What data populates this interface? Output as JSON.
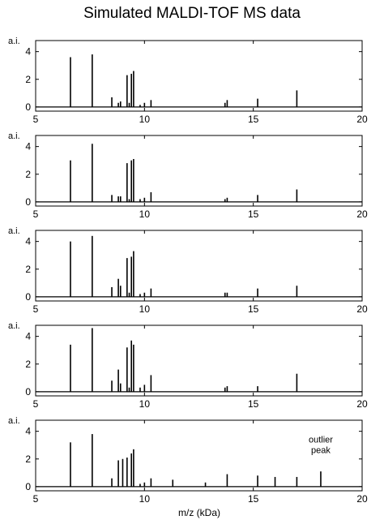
{
  "figure": {
    "title": "Simulated MALDI-TOF MS data",
    "xlabel": "m/z (kDa)",
    "ylabel": "a.i."
  },
  "chart_data": [
    {
      "type": "line",
      "xlim": [
        5,
        20
      ],
      "ylim": [
        -0.3,
        4.8
      ],
      "xticks": [
        5,
        10,
        15,
        20
      ],
      "yticks": [
        0,
        2,
        4
      ],
      "ylabel": "a.i.",
      "grid": false,
      "peaks": [
        {
          "x": 6.6,
          "y": 3.6
        },
        {
          "x": 7.6,
          "y": 3.8
        },
        {
          "x": 8.5,
          "y": 0.7
        },
        {
          "x": 8.8,
          "y": 0.3
        },
        {
          "x": 8.9,
          "y": 0.4
        },
        {
          "x": 9.2,
          "y": 2.3
        },
        {
          "x": 9.3,
          "y": 0.3
        },
        {
          "x": 9.4,
          "y": 2.4
        },
        {
          "x": 9.5,
          "y": 2.6
        },
        {
          "x": 9.8,
          "y": 0.15
        },
        {
          "x": 10.0,
          "y": 0.3
        },
        {
          "x": 10.3,
          "y": 0.5
        },
        {
          "x": 13.7,
          "y": 0.3
        },
        {
          "x": 13.8,
          "y": 0.5
        },
        {
          "x": 15.2,
          "y": 0.6
        },
        {
          "x": 17.0,
          "y": 1.2
        }
      ]
    },
    {
      "type": "line",
      "xlim": [
        5,
        20
      ],
      "ylim": [
        -0.3,
        4.8
      ],
      "xticks": [
        5,
        10,
        15,
        20
      ],
      "yticks": [
        0,
        2,
        4
      ],
      "ylabel": "a.i.",
      "grid": false,
      "peaks": [
        {
          "x": 6.6,
          "y": 3.0
        },
        {
          "x": 7.6,
          "y": 4.2
        },
        {
          "x": 8.5,
          "y": 0.5
        },
        {
          "x": 8.8,
          "y": 0.4
        },
        {
          "x": 8.9,
          "y": 0.4
        },
        {
          "x": 9.2,
          "y": 2.8
        },
        {
          "x": 9.3,
          "y": 0.2
        },
        {
          "x": 9.4,
          "y": 3.0
        },
        {
          "x": 9.5,
          "y": 3.1
        },
        {
          "x": 9.8,
          "y": 0.2
        },
        {
          "x": 10.0,
          "y": 0.3
        },
        {
          "x": 10.3,
          "y": 0.7
        },
        {
          "x": 13.7,
          "y": 0.2
        },
        {
          "x": 13.8,
          "y": 0.3
        },
        {
          "x": 15.2,
          "y": 0.5
        },
        {
          "x": 17.0,
          "y": 0.9
        }
      ]
    },
    {
      "type": "line",
      "xlim": [
        5,
        20
      ],
      "ylim": [
        -0.3,
        4.8
      ],
      "xticks": [
        5,
        10,
        15,
        20
      ],
      "yticks": [
        0,
        2,
        4
      ],
      "ylabel": "a.i.",
      "grid": false,
      "peaks": [
        {
          "x": 6.6,
          "y": 4.0
        },
        {
          "x": 7.6,
          "y": 4.4
        },
        {
          "x": 8.5,
          "y": 0.7
        },
        {
          "x": 8.8,
          "y": 1.3
        },
        {
          "x": 8.9,
          "y": 0.8
        },
        {
          "x": 9.2,
          "y": 2.8
        },
        {
          "x": 9.3,
          "y": 0.3
        },
        {
          "x": 9.4,
          "y": 2.9
        },
        {
          "x": 9.5,
          "y": 3.3
        },
        {
          "x": 9.8,
          "y": 0.2
        },
        {
          "x": 10.0,
          "y": 0.3
        },
        {
          "x": 10.3,
          "y": 0.6
        },
        {
          "x": 13.7,
          "y": 0.3
        },
        {
          "x": 13.8,
          "y": 0.3
        },
        {
          "x": 15.2,
          "y": 0.6
        },
        {
          "x": 17.0,
          "y": 0.8
        }
      ]
    },
    {
      "type": "line",
      "xlim": [
        5,
        20
      ],
      "ylim": [
        -0.3,
        4.8
      ],
      "xticks": [
        5,
        10,
        15,
        20
      ],
      "yticks": [
        0,
        2,
        4
      ],
      "ylabel": "a.i.",
      "grid": false,
      "peaks": [
        {
          "x": 6.6,
          "y": 3.4
        },
        {
          "x": 7.6,
          "y": 4.6
        },
        {
          "x": 8.5,
          "y": 0.8
        },
        {
          "x": 8.8,
          "y": 1.6
        },
        {
          "x": 8.9,
          "y": 0.6
        },
        {
          "x": 9.2,
          "y": 3.2
        },
        {
          "x": 9.3,
          "y": 0.3
        },
        {
          "x": 9.4,
          "y": 3.7
        },
        {
          "x": 9.5,
          "y": 3.4
        },
        {
          "x": 9.8,
          "y": 0.3
        },
        {
          "x": 10.0,
          "y": 0.5
        },
        {
          "x": 10.3,
          "y": 1.2
        },
        {
          "x": 13.7,
          "y": 0.3
        },
        {
          "x": 13.8,
          "y": 0.4
        },
        {
          "x": 15.2,
          "y": 0.4
        },
        {
          "x": 17.0,
          "y": 1.3
        }
      ]
    },
    {
      "type": "line",
      "xlim": [
        5,
        20
      ],
      "ylim": [
        -0.3,
        4.8
      ],
      "xticks": [
        5,
        10,
        15,
        20
      ],
      "yticks": [
        0,
        2,
        4
      ],
      "ylabel": "a.i.",
      "xlabel": "m/z (kDa)",
      "grid": false,
      "annotation": {
        "text": [
          "outlier",
          "peak"
        ],
        "x": 18.1,
        "y": 3.2
      },
      "peaks": [
        {
          "x": 6.6,
          "y": 3.2
        },
        {
          "x": 7.6,
          "y": 3.8
        },
        {
          "x": 8.5,
          "y": 0.6
        },
        {
          "x": 8.8,
          "y": 1.9
        },
        {
          "x": 9.0,
          "y": 2.0
        },
        {
          "x": 9.2,
          "y": 2.1
        },
        {
          "x": 9.4,
          "y": 2.4
        },
        {
          "x": 9.5,
          "y": 2.7
        },
        {
          "x": 9.8,
          "y": 0.2
        },
        {
          "x": 10.0,
          "y": 0.3
        },
        {
          "x": 10.3,
          "y": 0.6
        },
        {
          "x": 11.3,
          "y": 0.5
        },
        {
          "x": 12.8,
          "y": 0.3
        },
        {
          "x": 13.8,
          "y": 0.9
        },
        {
          "x": 15.2,
          "y": 0.8
        },
        {
          "x": 16.0,
          "y": 0.7
        },
        {
          "x": 17.0,
          "y": 0.7
        },
        {
          "x": 18.1,
          "y": 1.1
        }
      ]
    }
  ]
}
